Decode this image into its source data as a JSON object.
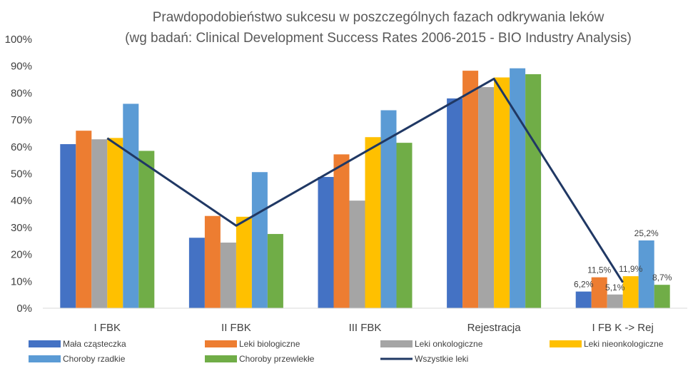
{
  "chart_data": {
    "type": "bar",
    "title": "Prawdopodobieństwo sukcesu w poszczególnych fazach odkrywania leków",
    "subtitle": "(wg badań: Clinical Development Success Rates 2006-2015  - BIO Industry Analysis)",
    "categories": [
      "I FBK",
      "II FBK",
      "III FBK",
      "Rejestracja",
      "I FB K -> Rej"
    ],
    "ylim": [
      0,
      100
    ],
    "yticks": [
      "0%",
      "10%",
      "20%",
      "30%",
      "40%",
      "50%",
      "60%",
      "70%",
      "80%",
      "90%",
      "100%"
    ],
    "grid": false,
    "legend_position": "bottom",
    "series": [
      {
        "name": "Mała cząsteczka",
        "color": "#4472C4",
        "values": [
          61.0,
          26.2,
          48.8,
          78.0,
          6.2
        ]
      },
      {
        "name": "Leki biologiczne",
        "color": "#ED7D31",
        "values": [
          66.0,
          34.3,
          57.2,
          88.3,
          11.5
        ]
      },
      {
        "name": "Leki onkologiczne",
        "color": "#A5A5A5",
        "values": [
          62.8,
          24.4,
          40.0,
          82.2,
          5.1
        ]
      },
      {
        "name": "Leki nieonkologiczne",
        "color": "#FFC000",
        "values": [
          63.3,
          34.0,
          63.6,
          85.8,
          11.9
        ]
      },
      {
        "name": "Choroby rzadkie",
        "color": "#5B9BD5",
        "values": [
          76.0,
          50.6,
          73.6,
          89.2,
          25.2
        ]
      },
      {
        "name": "Choroby przewlekłe",
        "color": "#70AD47",
        "values": [
          58.5,
          27.6,
          61.5,
          87.0,
          8.7
        ]
      }
    ],
    "line_series": {
      "name": "Wszystkie leki",
      "color": "#203864",
      "values": [
        63.2,
        30.7,
        58.1,
        85.3,
        9.6
      ]
    },
    "data_labels": [
      {
        "series": "Mała cząsteczka",
        "category": "I FB K -> Rej",
        "text": "6,2%"
      },
      {
        "series": "Leki biologiczne",
        "category": "I FB K -> Rej",
        "text": "11,5%"
      },
      {
        "series": "Leki onkologiczne",
        "category": "I FB K -> Rej",
        "text": "5,1%"
      },
      {
        "series": "Leki nieonkologiczne",
        "category": "I FB K -> Rej",
        "text": "11,9%"
      },
      {
        "series": "Choroby rzadkie",
        "category": "I FB K -> Rej",
        "text": "25,2%"
      },
      {
        "series": "Choroby przewlekłe",
        "category": "I FB K -> Rej",
        "text": "8,7%"
      }
    ]
  }
}
